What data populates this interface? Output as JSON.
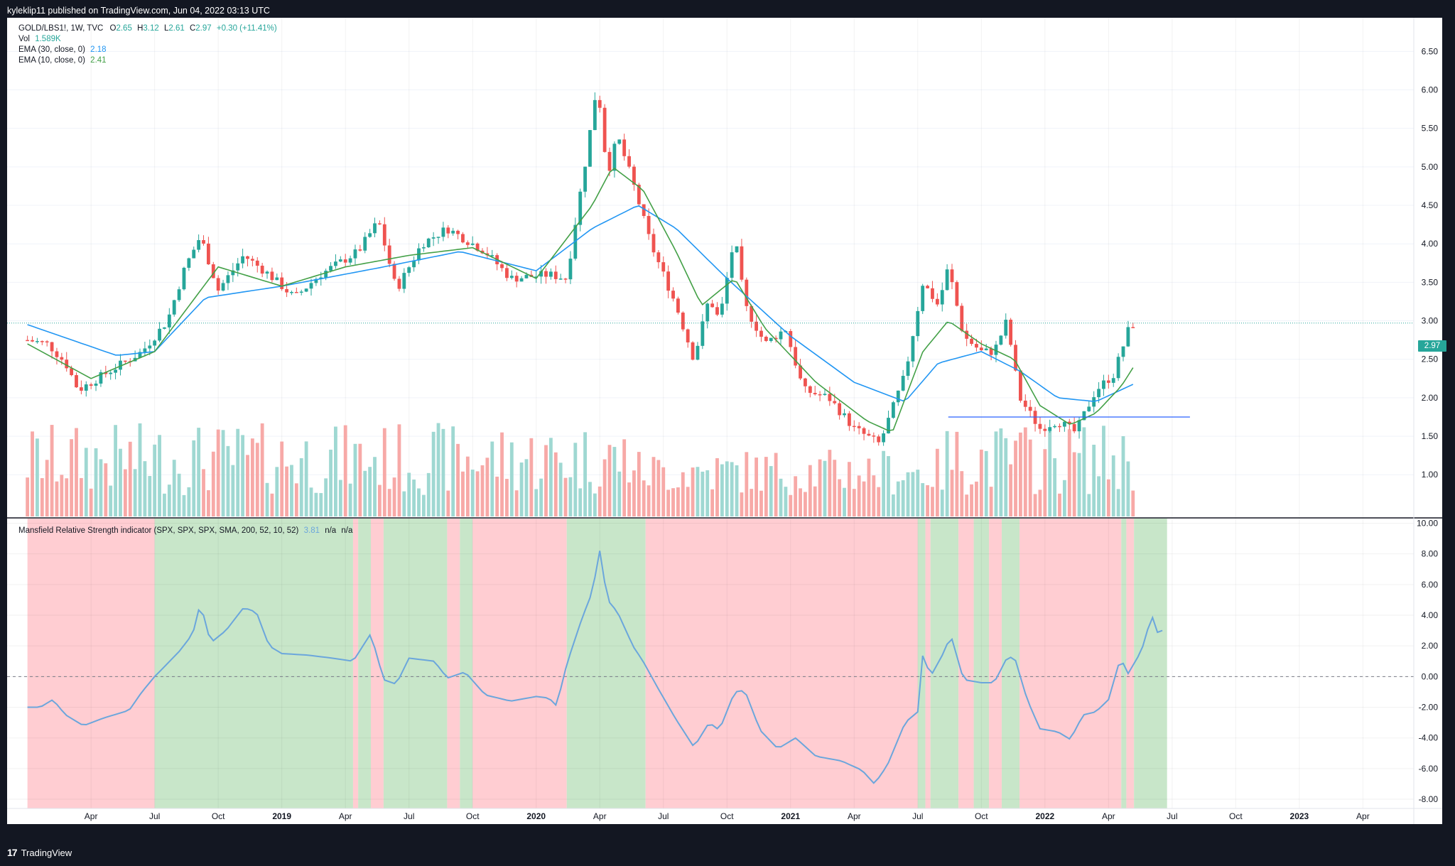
{
  "header": {
    "published": "kyleklip11 published on TradingView.com, Jun 04, 2022 03:13 UTC"
  },
  "legend": {
    "symbol": "GOLD/LBS1!, 1W, TVC",
    "ohlc": [
      {
        "k": "O",
        "v": "2.65"
      },
      {
        "k": "H",
        "v": "3.12"
      },
      {
        "k": "L",
        "v": "2.61"
      },
      {
        "k": "C",
        "v": "2.97"
      }
    ],
    "change": "+0.30 (+11.41%)",
    "vol_label": "Vol",
    "vol_value": "1.589K",
    "ema30_label": "EMA (30, close, 0)",
    "ema30_value": "2.18",
    "ema10_label": "EMA (10, close, 0)",
    "ema10_value": "2.41",
    "mansfield_label": "Mansfield Relative Strength indicator (SPX, SPX, SPX, SMA, 200, 52, 10, 52)",
    "mansfield_value": "3.81",
    "mansfield_na1": "n/a",
    "mansfield_na2": "n/a"
  },
  "price_badge": "2.97",
  "colors": {
    "up": "#26a69a",
    "down": "#ef5350",
    "ema30": "#2196f3",
    "ema10": "#43a047",
    "rs_line": "#6ba6dc",
    "bg_red": "#ffcdd2",
    "bg_green": "#c8e6c9"
  },
  "footer": {
    "brand": "TradingView",
    "logo": "17"
  },
  "chart_data": [
    {
      "type": "candlestick",
      "title": "GOLD/LBS1!, 1W, TVC",
      "y_ticks": [
        "6.50",
        "6.00",
        "5.50",
        "5.00",
        "4.50",
        "4.00",
        "3.50",
        "3.00",
        "2.50",
        "2.00",
        "1.50",
        "1.00"
      ],
      "ylim": [
        0.55,
        6.9
      ],
      "x_ticks": [
        {
          "label": "Apr",
          "bold": false,
          "t": 0.25
        },
        {
          "label": "Jul",
          "bold": false,
          "t": 0.5
        },
        {
          "label": "Oct",
          "bold": false,
          "t": 0.75
        },
        {
          "label": "2019",
          "bold": true,
          "t": 1.0
        },
        {
          "label": "Apr",
          "bold": false,
          "t": 1.25
        },
        {
          "label": "Jul",
          "bold": false,
          "t": 1.5
        },
        {
          "label": "Oct",
          "bold": false,
          "t": 1.75
        },
        {
          "label": "2020",
          "bold": true,
          "t": 2.0
        },
        {
          "label": "Apr",
          "bold": false,
          "t": 2.25
        },
        {
          "label": "Jul",
          "bold": false,
          "t": 2.5
        },
        {
          "label": "Oct",
          "bold": false,
          "t": 2.75
        },
        {
          "label": "2021",
          "bold": true,
          "t": 3.0
        },
        {
          "label": "Apr",
          "bold": false,
          "t": 3.25
        },
        {
          "label": "Jul",
          "bold": false,
          "t": 3.5
        },
        {
          "label": "Oct",
          "bold": false,
          "t": 3.75
        },
        {
          "label": "2022",
          "bold": true,
          "t": 4.0
        },
        {
          "label": "Apr",
          "bold": false,
          "t": 4.25
        },
        {
          "label": "Jul",
          "bold": false,
          "t": 4.5
        },
        {
          "label": "Oct",
          "bold": false,
          "t": 4.75
        },
        {
          "label": "2023",
          "bold": true,
          "t": 5.0
        },
        {
          "label": "Apr",
          "bold": false,
          "t": 5.25
        }
      ],
      "close_anchors": [
        [
          0.0,
          2.75
        ],
        [
          0.08,
          2.7
        ],
        [
          0.15,
          2.45
        ],
        [
          0.2,
          2.1
        ],
        [
          0.3,
          2.3
        ],
        [
          0.45,
          2.6
        ],
        [
          0.55,
          3.0
        ],
        [
          0.62,
          3.7
        ],
        [
          0.68,
          4.1
        ],
        [
          0.75,
          3.4
        ],
        [
          0.85,
          3.85
        ],
        [
          0.95,
          3.6
        ],
        [
          1.05,
          3.3
        ],
        [
          1.15,
          3.6
        ],
        [
          1.3,
          3.9
        ],
        [
          1.38,
          4.3
        ],
        [
          1.45,
          3.4
        ],
        [
          1.55,
          4.0
        ],
        [
          1.65,
          4.2
        ],
        [
          1.8,
          3.9
        ],
        [
          1.9,
          3.55
        ],
        [
          2.05,
          3.6
        ],
        [
          2.12,
          3.55
        ],
        [
          2.15,
          4.2
        ],
        [
          2.2,
          5.2
        ],
        [
          2.24,
          6.1
        ],
        [
          2.28,
          4.9
        ],
        [
          2.32,
          5.4
        ],
        [
          2.38,
          4.8
        ],
        [
          2.45,
          4.0
        ],
        [
          2.55,
          3.2
        ],
        [
          2.62,
          2.5
        ],
        [
          2.68,
          3.3
        ],
        [
          2.72,
          3.0
        ],
        [
          2.78,
          4.1
        ],
        [
          2.82,
          3.2
        ],
        [
          2.9,
          2.7
        ],
        [
          2.98,
          2.9
        ],
        [
          3.05,
          2.1
        ],
        [
          3.15,
          2.0
        ],
        [
          3.25,
          1.6
        ],
        [
          3.35,
          1.4
        ],
        [
          3.45,
          2.3
        ],
        [
          3.52,
          3.5
        ],
        [
          3.58,
          3.2
        ],
        [
          3.62,
          3.7
        ],
        [
          3.68,
          2.8
        ],
        [
          3.75,
          2.6
        ],
        [
          3.8,
          2.6
        ],
        [
          3.85,
          3.0
        ],
        [
          3.9,
          2.0
        ],
        [
          3.98,
          1.6
        ],
        [
          4.05,
          1.7
        ],
        [
          4.12,
          1.55
        ],
        [
          4.2,
          2.1
        ],
        [
          4.27,
          2.3
        ],
        [
          4.33,
          2.9
        ],
        [
          4.35,
          2.97
        ]
      ],
      "ema10_anchors": [
        [
          0.0,
          2.7
        ],
        [
          0.25,
          2.25
        ],
        [
          0.5,
          2.6
        ],
        [
          0.75,
          3.7
        ],
        [
          1.0,
          3.45
        ],
        [
          1.25,
          3.7
        ],
        [
          1.5,
          3.85
        ],
        [
          1.75,
          3.95
        ],
        [
          2.0,
          3.55
        ],
        [
          2.22,
          4.5
        ],
        [
          2.3,
          5.0
        ],
        [
          2.42,
          4.7
        ],
        [
          2.55,
          3.9
        ],
        [
          2.65,
          3.2
        ],
        [
          2.78,
          3.55
        ],
        [
          2.9,
          2.9
        ],
        [
          3.1,
          2.2
        ],
        [
          3.3,
          1.7
        ],
        [
          3.4,
          1.55
        ],
        [
          3.52,
          2.6
        ],
        [
          3.62,
          3.0
        ],
        [
          3.75,
          2.7
        ],
        [
          3.88,
          2.5
        ],
        [
          3.98,
          1.9
        ],
        [
          4.1,
          1.65
        ],
        [
          4.2,
          1.8
        ],
        [
          4.3,
          2.15
        ],
        [
          4.35,
          2.41
        ]
      ],
      "ema30_anchors": [
        [
          0.0,
          2.95
        ],
        [
          0.35,
          2.55
        ],
        [
          0.5,
          2.6
        ],
        [
          0.7,
          3.3
        ],
        [
          1.0,
          3.45
        ],
        [
          1.4,
          3.7
        ],
        [
          1.7,
          3.9
        ],
        [
          2.0,
          3.65
        ],
        [
          2.22,
          4.2
        ],
        [
          2.4,
          4.5
        ],
        [
          2.55,
          4.2
        ],
        [
          2.75,
          3.55
        ],
        [
          3.0,
          2.8
        ],
        [
          3.25,
          2.2
        ],
        [
          3.45,
          1.95
        ],
        [
          3.58,
          2.45
        ],
        [
          3.75,
          2.6
        ],
        [
          3.9,
          2.35
        ],
        [
          4.05,
          2.0
        ],
        [
          4.2,
          1.95
        ],
        [
          4.35,
          2.18
        ]
      ],
      "volume_range": [
        0.2,
        1.0
      ],
      "horizontal_line": {
        "y": 1.75,
        "t_from": 3.62,
        "t_to": 4.57
      },
      "last_price": 2.97
    },
    {
      "type": "line",
      "title": "Mansfield Relative Strength indicator (SPX, SPX, SPX, SMA, 200, 52, 10, 52)",
      "y_ticks": [
        "10.00",
        "8.00",
        "6.00",
        "4.00",
        "2.00",
        "0.00",
        "-2.00",
        "-4.00",
        "-6.00",
        "-8.00"
      ],
      "ylim": [
        -8.6,
        10.3
      ],
      "zero_line": 0,
      "series_anchors": [
        [
          0.0,
          -2.0
        ],
        [
          0.05,
          -2.0
        ],
        [
          0.1,
          -1.5
        ],
        [
          0.15,
          -2.5
        ],
        [
          0.22,
          -3.2
        ],
        [
          0.3,
          -2.7
        ],
        [
          0.4,
          -2.2
        ],
        [
          0.45,
          -1.0
        ],
        [
          0.5,
          0.0
        ],
        [
          0.53,
          0.5
        ],
        [
          0.6,
          1.7
        ],
        [
          0.65,
          2.8
        ],
        [
          0.68,
          4.8
        ],
        [
          0.72,
          2.2
        ],
        [
          0.78,
          3.0
        ],
        [
          0.85,
          4.5
        ],
        [
          0.9,
          4.2
        ],
        [
          0.95,
          2.0
        ],
        [
          1.0,
          1.5
        ],
        [
          1.1,
          1.4
        ],
        [
          1.2,
          1.2
        ],
        [
          1.28,
          1.0
        ],
        [
          1.35,
          2.8
        ],
        [
          1.4,
          -0.2
        ],
        [
          1.45,
          -0.5
        ],
        [
          1.5,
          1.2
        ],
        [
          1.6,
          1.0
        ],
        [
          1.65,
          -0.1
        ],
        [
          1.72,
          0.3
        ],
        [
          1.8,
          -1.2
        ],
        [
          1.9,
          -1.6
        ],
        [
          2.0,
          -1.3
        ],
        [
          2.05,
          -1.4
        ],
        [
          2.08,
          -1.9
        ],
        [
          2.12,
          0.8
        ],
        [
          2.18,
          3.8
        ],
        [
          2.22,
          5.5
        ],
        [
          2.25,
          8.2
        ],
        [
          2.28,
          5.0
        ],
        [
          2.32,
          4.2
        ],
        [
          2.38,
          2.0
        ],
        [
          2.42,
          1.0
        ],
        [
          2.48,
          -0.8
        ],
        [
          2.55,
          -2.8
        ],
        [
          2.62,
          -4.6
        ],
        [
          2.68,
          -3.0
        ],
        [
          2.72,
          -3.5
        ],
        [
          2.78,
          -1.0
        ],
        [
          2.82,
          -0.9
        ],
        [
          2.88,
          -3.5
        ],
        [
          2.95,
          -4.7
        ],
        [
          3.02,
          -4.0
        ],
        [
          3.1,
          -5.2
        ],
        [
          3.2,
          -5.5
        ],
        [
          3.28,
          -6.1
        ],
        [
          3.33,
          -7.0
        ],
        [
          3.38,
          -5.8
        ],
        [
          3.45,
          -3.0
        ],
        [
          3.5,
          -2.3
        ],
        [
          3.52,
          1.5
        ],
        [
          3.55,
          0.0
        ],
        [
          3.6,
          1.5
        ],
        [
          3.63,
          2.7
        ],
        [
          3.68,
          -0.2
        ],
        [
          3.75,
          -0.4
        ],
        [
          3.8,
          -0.4
        ],
        [
          3.85,
          1.2
        ],
        [
          3.88,
          1.3
        ],
        [
          3.93,
          -1.5
        ],
        [
          3.98,
          -3.4
        ],
        [
          4.05,
          -3.6
        ],
        [
          4.1,
          -4.1
        ],
        [
          4.15,
          -2.5
        ],
        [
          4.2,
          -2.3
        ],
        [
          4.25,
          -1.5
        ],
        [
          4.3,
          1.4
        ],
        [
          4.32,
          0.0
        ],
        [
          4.38,
          1.7
        ],
        [
          4.42,
          4.0
        ],
        [
          4.45,
          2.5
        ],
        [
          4.48,
          3.81
        ]
      ],
      "background_regimes": [
        {
          "from": 0.0,
          "to": 0.5,
          "state": "red"
        },
        {
          "from": 0.5,
          "to": 1.28,
          "state": "green"
        },
        {
          "from": 1.28,
          "to": 1.3,
          "state": "red"
        },
        {
          "from": 1.3,
          "to": 1.35,
          "state": "green"
        },
        {
          "from": 1.35,
          "to": 1.4,
          "state": "red"
        },
        {
          "from": 1.4,
          "to": 1.65,
          "state": "green"
        },
        {
          "from": 1.65,
          "to": 1.7,
          "state": "red"
        },
        {
          "from": 1.7,
          "to": 1.75,
          "state": "green"
        },
        {
          "from": 1.75,
          "to": 2.12,
          "state": "red"
        },
        {
          "from": 2.12,
          "to": 2.43,
          "state": "green"
        },
        {
          "from": 2.43,
          "to": 3.5,
          "state": "red"
        },
        {
          "from": 3.5,
          "to": 3.53,
          "state": "green"
        },
        {
          "from": 3.53,
          "to": 3.55,
          "state": "red"
        },
        {
          "from": 3.55,
          "to": 3.66,
          "state": "green"
        },
        {
          "from": 3.66,
          "to": 3.72,
          "state": "red"
        },
        {
          "from": 3.72,
          "to": 3.78,
          "state": "green"
        },
        {
          "from": 3.78,
          "to": 3.83,
          "state": "red"
        },
        {
          "from": 3.83,
          "to": 3.9,
          "state": "green"
        },
        {
          "from": 3.9,
          "to": 4.3,
          "state": "red"
        },
        {
          "from": 4.3,
          "to": 4.32,
          "state": "green"
        },
        {
          "from": 4.32,
          "to": 4.35,
          "state": "red"
        },
        {
          "from": 4.35,
          "to": 4.48,
          "state": "green"
        }
      ]
    }
  ]
}
